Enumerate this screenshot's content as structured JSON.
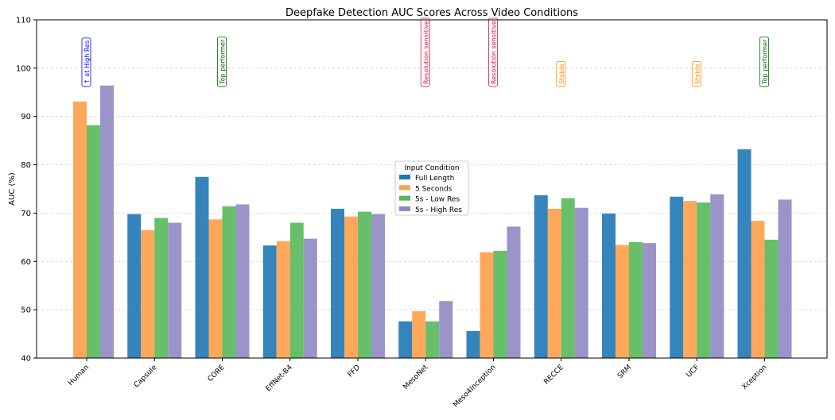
{
  "chart_data": {
    "type": "bar",
    "title": "Deepfake Detection AUC Scores Across Video Conditions",
    "xlabel": "",
    "ylabel": "AUC (%)",
    "ylim": [
      40,
      110
    ],
    "yticks": [
      40,
      50,
      60,
      70,
      80,
      90,
      100,
      110
    ],
    "grid": "y, dashed",
    "categories": [
      "Human",
      "Capsule",
      "CORE",
      "EffNet-B4",
      "FFD",
      "MesoNet",
      "Meso4Inception",
      "RECCE",
      "SRM",
      "UCF",
      "Xception"
    ],
    "series": [
      {
        "name": "Full Length",
        "color": "#1f77b4",
        "values": [
          null,
          69.8,
          77.5,
          63.3,
          70.9,
          47.6,
          45.6,
          73.7,
          69.9,
          73.4,
          83.2
        ]
      },
      {
        "name": "5 Seconds",
        "color": "#ff9f4a",
        "values": [
          93.1,
          66.5,
          68.7,
          64.2,
          69.3,
          49.7,
          61.9,
          70.9,
          63.4,
          72.5,
          68.4
        ]
      },
      {
        "name": "5s - Low Res",
        "color": "#56b85a",
        "values": [
          88.2,
          69.0,
          71.4,
          68.0,
          70.3,
          47.6,
          62.2,
          73.1,
          64.0,
          72.2,
          64.5
        ]
      },
      {
        "name": "5s - High Res",
        "color": "#8f88c2",
        "values": [
          96.4,
          68.0,
          71.8,
          64.7,
          69.8,
          51.8,
          67.2,
          71.1,
          63.8,
          73.9,
          72.8
        ]
      }
    ],
    "legend": {
      "title": "Input Condition",
      "placement": "center"
    },
    "annotations": [
      {
        "category": "Human",
        "text": "↑ at High Res",
        "color": "#0000ff"
      },
      {
        "category": "CORE",
        "text": "Top performer",
        "color": "#006400"
      },
      {
        "category": "MesoNet",
        "text": "Resolution sensitive",
        "color": "#dc143c"
      },
      {
        "category": "Meso4Inception",
        "text": "Resolution sensitive",
        "color": "#dc143c"
      },
      {
        "category": "RECCE",
        "text": "Stable",
        "color": "#ff8c00"
      },
      {
        "category": "UCF",
        "text": "Stable",
        "color": "#ff8c00"
      },
      {
        "category": "Xception",
        "text": "Top performer",
        "color": "#006400"
      }
    ]
  }
}
